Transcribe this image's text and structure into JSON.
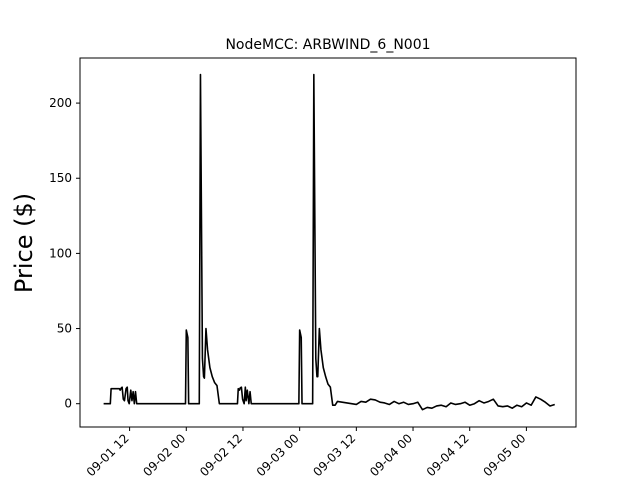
{
  "chart_data": {
    "type": "line",
    "title": "NodeMCC: ARBWIND_6_N001",
    "xlabel": "",
    "ylabel": "Price ($)",
    "grid": false,
    "legend": "none",
    "xlim": [
      "2023-09-01 01:30",
      "2023-09-05 10:30"
    ],
    "ylim": [
      -15.5,
      230
    ],
    "yticks": [
      0,
      50,
      100,
      150,
      200
    ],
    "xticks": [
      "2023-09-01 12:00",
      "2023-09-02 00:00",
      "2023-09-02 12:00",
      "2023-09-03 00:00",
      "2023-09-03 12:00",
      "2023-09-04 00:00",
      "2023-09-04 12:00",
      "2023-09-05 00:00"
    ],
    "xtick_labels": [
      "09-01 12",
      "09-02 00",
      "09-02 12",
      "09-03 00",
      "09-03 12",
      "09-04 00",
      "09-04 12",
      "09-05 00"
    ],
    "line_color": "#000000",
    "series": [
      {
        "name": "",
        "x": [
          "2023-09-01 06:30",
          "2023-09-01 07:55",
          "2023-09-01 08:05",
          "2023-09-01 09:00",
          "2023-09-01 09:50",
          "2023-09-01 10:00",
          "2023-09-01 10:15",
          "2023-09-01 10:25",
          "2023-09-01 10:40",
          "2023-09-01 10:55",
          "2023-09-01 11:15",
          "2023-09-01 11:30",
          "2023-09-01 11:40",
          "2023-09-01 11:55",
          "2023-09-01 12:15",
          "2023-09-01 12:30",
          "2023-09-01 12:45",
          "2023-09-01 13:00",
          "2023-09-01 13:15",
          "2023-09-01 13:30",
          "2023-09-01 13:50",
          "2023-09-01 14:00",
          "2023-09-01 23:50",
          "2023-09-02 00:00",
          "2023-09-02 00:20",
          "2023-09-02 00:30",
          "2023-09-02 02:45",
          "2023-09-02 03:00",
          "2023-09-02 03:25",
          "2023-09-02 03:40",
          "2023-09-02 03:50",
          "2023-09-02 04:10",
          "2023-09-02 04:30",
          "2023-09-02 05:00",
          "2023-09-02 05:30",
          "2023-09-02 06:00",
          "2023-09-02 06:30",
          "2023-09-02 07:00",
          "2023-09-02 08:00",
          "2023-09-02 08:30",
          "2023-09-02 09:00",
          "2023-09-02 10:00",
          "2023-09-02 10:50",
          "2023-09-02 11:00",
          "2023-09-02 11:15",
          "2023-09-02 11:25",
          "2023-09-02 11:40",
          "2023-09-02 11:55",
          "2023-09-02 12:15",
          "2023-09-02 12:30",
          "2023-09-02 12:40",
          "2023-09-02 12:55",
          "2023-09-02 13:15",
          "2023-09-02 13:30",
          "2023-09-02 13:45",
          "2023-09-02 14:00",
          "2023-09-02 23:50",
          "2023-09-03 00:00",
          "2023-09-03 00:20",
          "2023-09-03 00:30",
          "2023-09-03 02:45",
          "2023-09-03 03:00",
          "2023-09-03 03:25",
          "2023-09-03 03:40",
          "2023-09-03 03:50",
          "2023-09-03 04:10",
          "2023-09-03 04:30",
          "2023-09-03 05:00",
          "2023-09-03 05:30",
          "2023-09-03 06:00",
          "2023-09-03 06:30",
          "2023-09-03 07:00",
          "2023-09-03 07:30",
          "2023-09-03 08:00",
          "2023-09-03 09:00",
          "2023-09-03 10:00",
          "2023-09-03 11:00",
          "2023-09-03 12:00",
          "2023-09-03 13:00",
          "2023-09-03 14:00",
          "2023-09-03 15:00",
          "2023-09-03 16:00",
          "2023-09-03 17:00",
          "2023-09-03 18:00",
          "2023-09-03 19:00",
          "2023-09-03 20:00",
          "2023-09-03 21:00",
          "2023-09-03 22:00",
          "2023-09-03 23:00",
          "2023-09-04 00:00",
          "2023-09-04 01:00",
          "2023-09-04 02:00",
          "2023-09-04 03:00",
          "2023-09-04 04:00",
          "2023-09-04 05:00",
          "2023-09-04 06:00",
          "2023-09-04 07:00",
          "2023-09-04 08:00",
          "2023-09-04 09:00",
          "2023-09-04 10:00",
          "2023-09-04 11:00",
          "2023-09-04 12:00",
          "2023-09-04 13:00",
          "2023-09-04 14:00",
          "2023-09-04 15:00",
          "2023-09-04 16:00",
          "2023-09-04 17:00",
          "2023-09-04 18:00",
          "2023-09-04 19:00",
          "2023-09-04 20:00",
          "2023-09-04 21:00",
          "2023-09-04 22:00",
          "2023-09-04 23:00",
          "2023-09-05 00:00",
          "2023-09-05 01:00",
          "2023-09-05 02:00",
          "2023-09-05 03:00",
          "2023-09-05 04:00",
          "2023-09-05 05:00",
          "2023-09-05 06:00"
        ],
        "values": [
          0,
          0,
          10,
          10,
          10,
          9,
          10.5,
          11,
          3,
          2,
          10,
          11,
          2,
          0,
          9,
          2,
          8,
          0,
          8,
          0,
          0,
          0,
          0,
          49,
          44,
          0,
          0,
          219,
          30,
          18,
          17,
          50,
          36,
          24,
          18,
          14,
          12,
          0,
          0,
          0,
          0,
          0,
          0,
          10,
          9,
          10.5,
          11,
          3,
          0,
          11,
          2,
          9,
          0,
          8,
          0,
          0,
          0,
          49,
          44,
          0,
          0,
          219,
          30,
          18,
          18,
          50,
          36,
          24,
          18,
          13,
          11,
          -1,
          -1,
          1.5,
          1,
          0.5,
          0,
          -0.5,
          1.5,
          1,
          3,
          2.5,
          1,
          0.5,
          -0.5,
          1.5,
          0,
          1,
          -0.5,
          0,
          1,
          -4,
          -2.5,
          -3,
          -1.5,
          -1,
          -2,
          0.5,
          -0.5,
          0,
          1,
          -1,
          0,
          2,
          0.5,
          1.5,
          3,
          -1.5,
          -2,
          -1.5,
          -3,
          -1,
          -2,
          0.5,
          -1,
          4.5,
          3,
          1,
          -1.5,
          -0.5
        ]
      }
    ]
  }
}
